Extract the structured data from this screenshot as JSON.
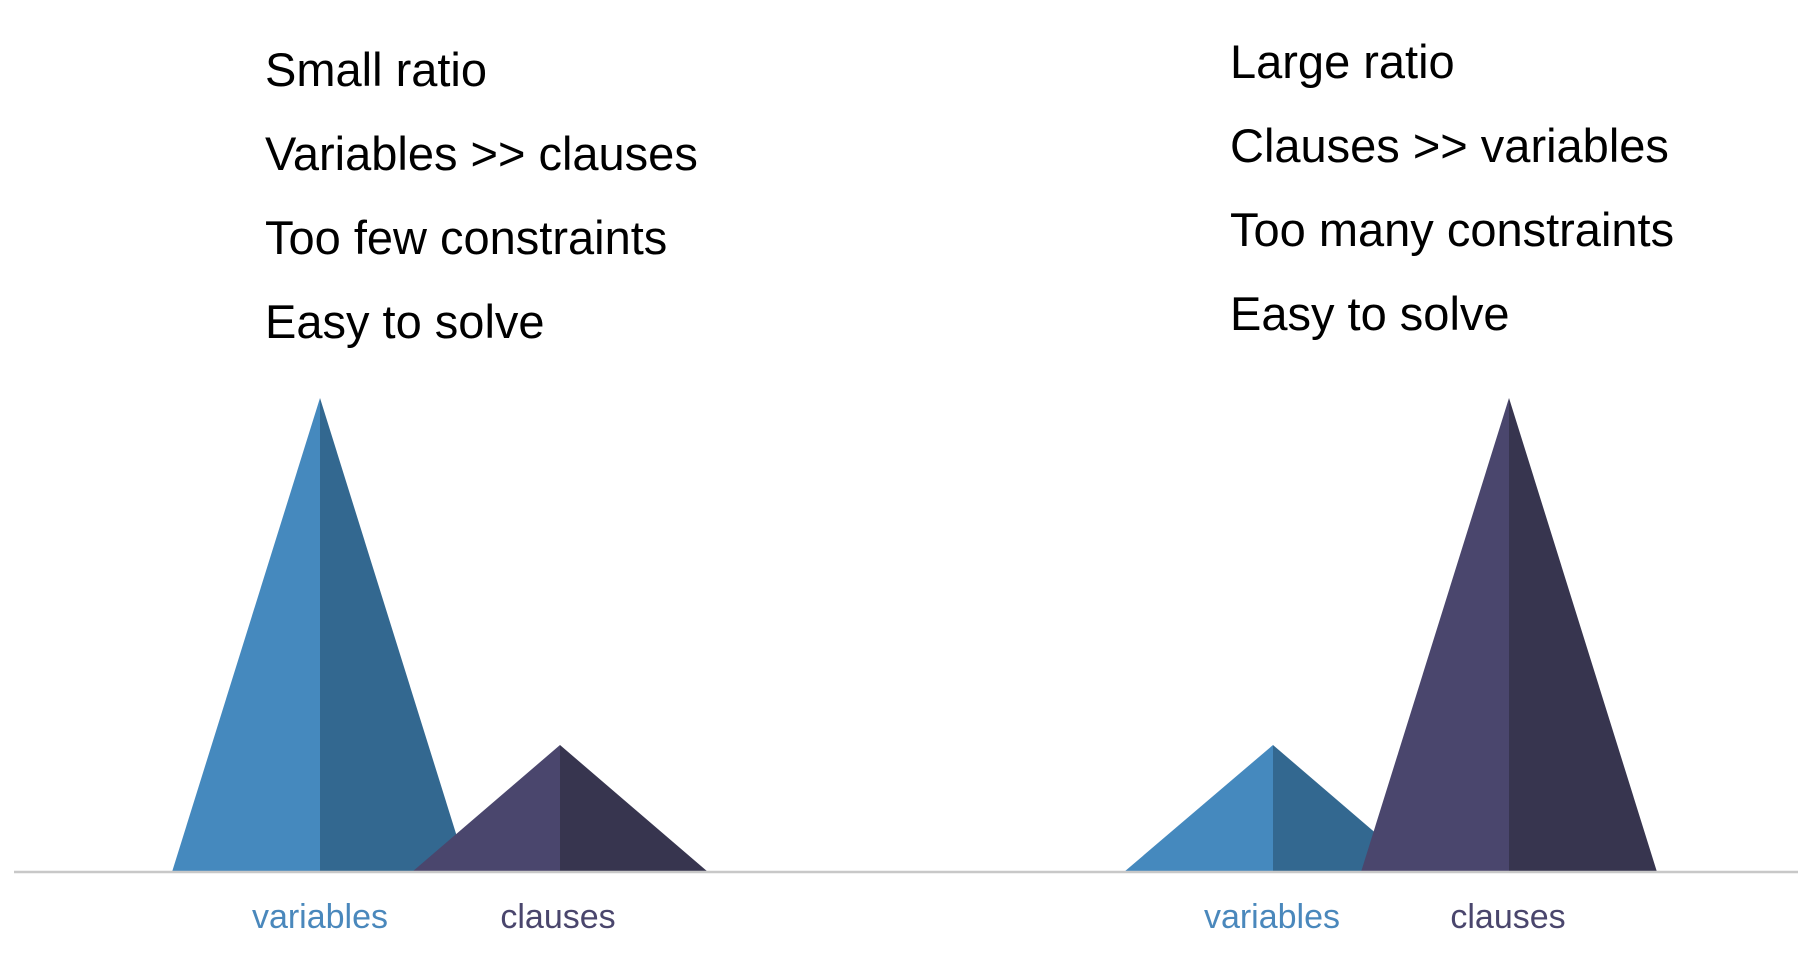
{
  "colors": {
    "variables_light": "#4589be",
    "variables_dark": "#336890",
    "clauses_light": "#4a466d",
    "clauses_dark": "#37354f",
    "variables_label": "#4a88bc",
    "clauses_label": "#4a466d",
    "baseline": "#c8c8c8"
  },
  "left_panel": {
    "lines": [
      "Small ratio",
      "Variables >> clauses",
      "Too few constraints",
      "Easy to solve"
    ],
    "variables_label": "variables",
    "clauses_label": "clauses"
  },
  "right_panel": {
    "lines": [
      "Large ratio",
      "Clauses >> variables",
      "Too many constraints",
      "Easy to solve"
    ],
    "variables_label": "variables",
    "clauses_label": "clauses"
  }
}
